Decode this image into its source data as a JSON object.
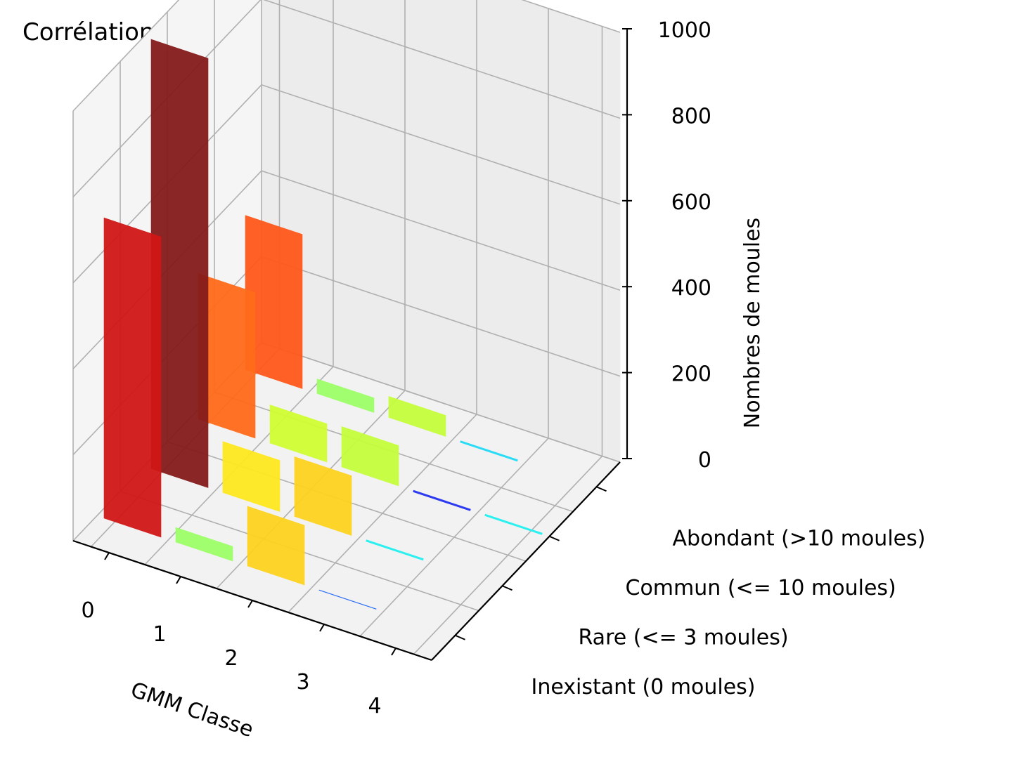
{
  "chart_data": {
    "type": "bar3d",
    "title": "Corrélation GMM/Habitats de moules",
    "xlabel": "GMM Classe",
    "ylabel": "",
    "zlabel": "Nombres de moules",
    "x_categories": [
      "0",
      "1",
      "2",
      "3",
      "4"
    ],
    "y_categories": [
      "Inexistant (0 moules)",
      "Rare (<= 3 moules)",
      "Commun (<= 10 moules)",
      "Abondant (>10 moules)"
    ],
    "zlim": [
      0,
      1000
    ],
    "z_ticks": [
      "0",
      "200",
      "400",
      "600",
      "800",
      "1000"
    ],
    "grid": true,
    "bars": [
      {
        "x": "0",
        "y": "Inexistant (0 moules)",
        "value": 700,
        "color": "#d11616"
      },
      {
        "x": "0",
        "y": "Rare (<= 3 moules)",
        "value": 1000,
        "color": "#851a1a"
      },
      {
        "x": "0",
        "y": "Commun (<= 10 moules)",
        "value": 340,
        "color": "#ff6a1a"
      },
      {
        "x": "0",
        "y": "Abondant (>10 moules)",
        "value": 360,
        "color": "#ff5719"
      },
      {
        "x": "1",
        "y": "Inexistant (0 moules)",
        "value": 35,
        "color": "#9cfe66"
      },
      {
        "x": "1",
        "y": "Rare (<= 3 moules)",
        "value": 120,
        "color": "#fde81d"
      },
      {
        "x": "1",
        "y": "Commun (<= 10 moules)",
        "value": 90,
        "color": "#d0fd33"
      },
      {
        "x": "1",
        "y": "Abondant (>10 moules)",
        "value": 35,
        "color": "#9cfe66"
      },
      {
        "x": "2",
        "y": "Inexistant (0 moules)",
        "value": 140,
        "color": "#fdd21d"
      },
      {
        "x": "2",
        "y": "Rare (<= 3 moules)",
        "value": 140,
        "color": "#fdd21d"
      },
      {
        "x": "2",
        "y": "Commun (<= 10 moules)",
        "value": 95,
        "color": "#c4fd3b"
      },
      {
        "x": "2",
        "y": "Abondant (>10 moules)",
        "value": 50,
        "color": "#c4fd3b"
      },
      {
        "x": "3",
        "y": "Inexistant (0 moules)",
        "value": 0,
        "color": "#2a6cf5"
      },
      {
        "x": "3",
        "y": "Rare (<= 3 moules)",
        "value": 2,
        "color": "#2cf0f0"
      },
      {
        "x": "3",
        "y": "Commun (<= 10 moules)",
        "value": 1,
        "color": "#2d3bf0"
      },
      {
        "x": "3",
        "y": "Abondant (>10 moules)",
        "value": 3,
        "color": "#2adcf5"
      },
      {
        "x": "4",
        "y": "Commun (<= 10 moules)",
        "value": 2,
        "color": "#2cf0f0"
      }
    ]
  }
}
